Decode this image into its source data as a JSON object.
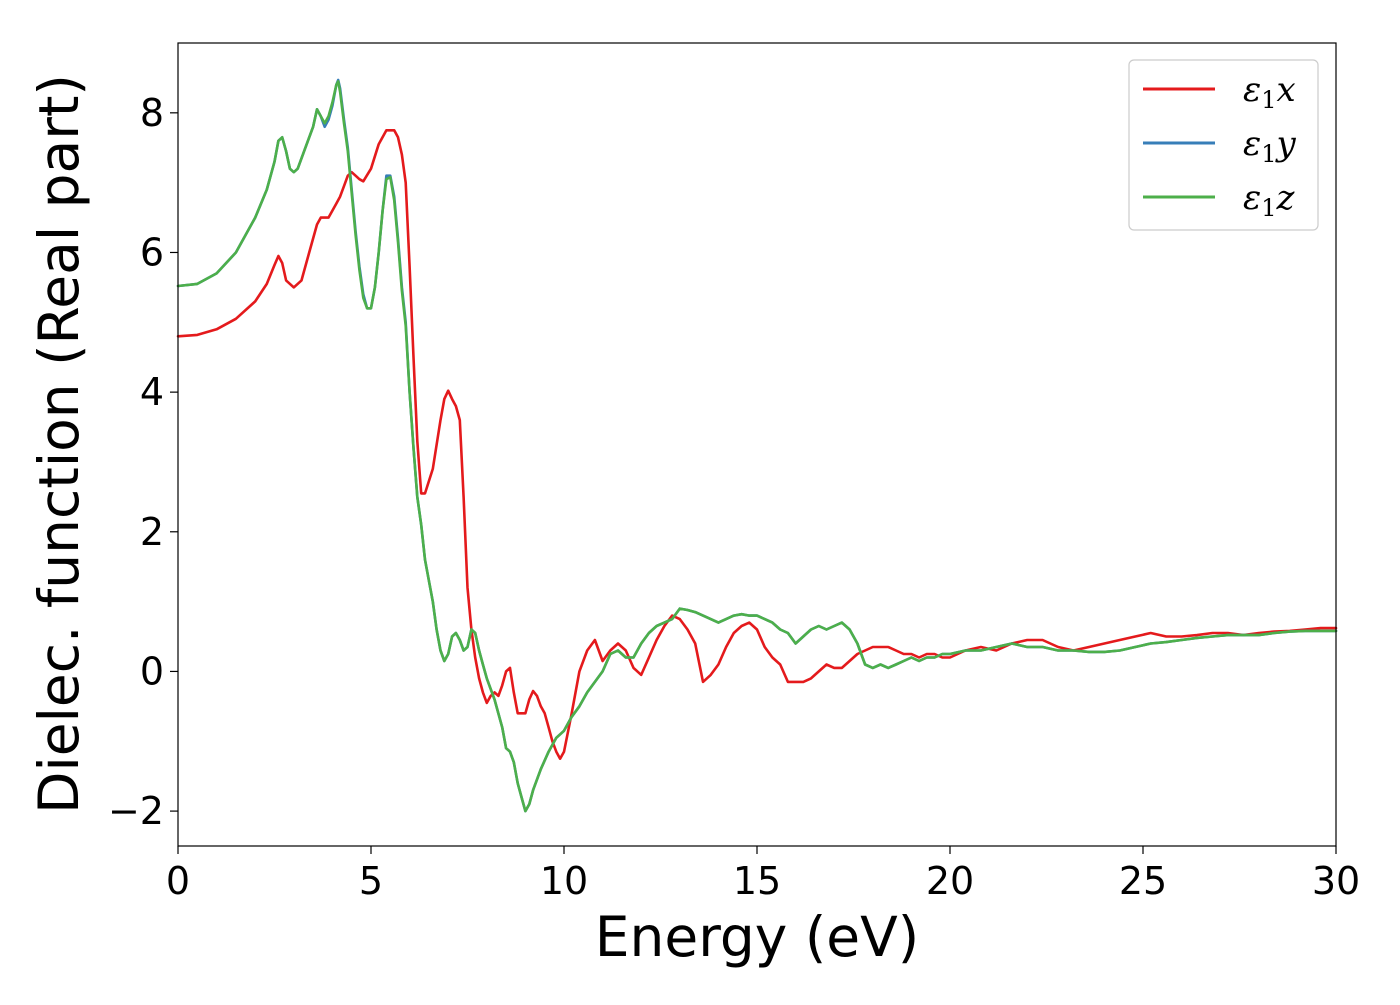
{
  "chart_data": {
    "type": "line",
    "title": "",
    "xlabel": "Energy (eV)",
    "ylabel": "Dielec. function (Real part)",
    "xlim": [
      0,
      30
    ],
    "ylim": [
      -2.5,
      9.0
    ],
    "xticks": [
      0,
      5,
      10,
      15,
      20,
      25,
      30
    ],
    "yticks": [
      -2,
      0,
      2,
      4,
      6,
      8
    ],
    "xtick_labels": [
      "0",
      "5",
      "10",
      "15",
      "20",
      "25",
      "30"
    ],
    "ytick_labels": [
      "−2",
      "0",
      "2",
      "4",
      "6",
      "8"
    ],
    "grid": false,
    "legend_position": "top-right",
    "series": [
      {
        "name": "ε1x",
        "label_main": "ε",
        "label_sub": "1",
        "label_tail": "x",
        "color": "#e41a1c",
        "x": [
          0,
          0.5,
          1.0,
          1.5,
          2.0,
          2.3,
          2.5,
          2.6,
          2.7,
          2.8,
          3.0,
          3.2,
          3.4,
          3.6,
          3.7,
          3.8,
          3.9,
          4.0,
          4.1,
          4.2,
          4.3,
          4.4,
          4.5,
          4.6,
          4.7,
          4.8,
          5.0,
          5.2,
          5.4,
          5.6,
          5.7,
          5.8,
          5.9,
          6.0,
          6.1,
          6.2,
          6.3,
          6.4,
          6.6,
          6.8,
          6.9,
          7.0,
          7.1,
          7.2,
          7.3,
          7.4,
          7.5,
          7.6,
          7.7,
          7.8,
          7.9,
          8.0,
          8.1,
          8.2,
          8.3,
          8.4,
          8.5,
          8.6,
          8.7,
          8.8,
          9.0,
          9.1,
          9.2,
          9.3,
          9.4,
          9.5,
          9.6,
          9.7,
          9.8,
          9.9,
          10.0,
          10.2,
          10.4,
          10.6,
          10.8,
          11.0,
          11.2,
          11.4,
          11.6,
          11.8,
          12.0,
          12.2,
          12.4,
          12.6,
          12.8,
          13.0,
          13.2,
          13.4,
          13.6,
          13.8,
          14.0,
          14.2,
          14.4,
          14.6,
          14.8,
          15.0,
          15.2,
          15.4,
          15.6,
          15.8,
          16.0,
          16.2,
          16.4,
          16.6,
          16.8,
          17.0,
          17.2,
          17.4,
          17.6,
          17.8,
          18.0,
          18.2,
          18.4,
          18.6,
          18.8,
          19.0,
          19.2,
          19.4,
          19.6,
          19.8,
          20.0,
          20.4,
          20.8,
          21.2,
          21.6,
          22.0,
          22.4,
          22.8,
          23.2,
          23.6,
          24.0,
          24.4,
          24.8,
          25.2,
          25.6,
          26.0,
          26.4,
          26.8,
          27.2,
          27.6,
          28.0,
          28.4,
          28.8,
          29.2,
          29.6,
          30.0
        ],
        "y": [
          4.8,
          4.82,
          4.9,
          5.05,
          5.3,
          5.55,
          5.82,
          5.95,
          5.85,
          5.6,
          5.5,
          5.6,
          6.0,
          6.4,
          6.5,
          6.5,
          6.5,
          6.6,
          6.7,
          6.8,
          6.95,
          7.1,
          7.15,
          7.1,
          7.05,
          7.02,
          7.2,
          7.55,
          7.75,
          7.75,
          7.65,
          7.4,
          7.0,
          5.8,
          4.5,
          3.3,
          2.55,
          2.55,
          2.9,
          3.6,
          3.9,
          4.02,
          3.9,
          3.8,
          3.6,
          2.5,
          1.2,
          0.6,
          0.2,
          -0.1,
          -0.3,
          -0.45,
          -0.35,
          -0.3,
          -0.35,
          -0.2,
          0.0,
          0.05,
          -0.3,
          -0.6,
          -0.6,
          -0.4,
          -0.28,
          -0.35,
          -0.5,
          -0.6,
          -0.8,
          -1.0,
          -1.15,
          -1.25,
          -1.15,
          -0.6,
          0.0,
          0.3,
          0.45,
          0.15,
          0.3,
          0.4,
          0.3,
          0.05,
          -0.05,
          0.2,
          0.45,
          0.65,
          0.8,
          0.75,
          0.6,
          0.4,
          -0.15,
          -0.05,
          0.1,
          0.35,
          0.55,
          0.65,
          0.7,
          0.6,
          0.35,
          0.2,
          0.1,
          -0.15,
          -0.15,
          -0.15,
          -0.1,
          0.0,
          0.1,
          0.05,
          0.05,
          0.15,
          0.25,
          0.3,
          0.35,
          0.35,
          0.35,
          0.3,
          0.25,
          0.25,
          0.2,
          0.25,
          0.25,
          0.2,
          0.2,
          0.3,
          0.35,
          0.3,
          0.4,
          0.45,
          0.45,
          0.35,
          0.3,
          0.35,
          0.4,
          0.45,
          0.5,
          0.55,
          0.5,
          0.5,
          0.52,
          0.55,
          0.55,
          0.52,
          0.55,
          0.57,
          0.58,
          0.6,
          0.62,
          0.62
        ]
      },
      {
        "name": "ε1y",
        "label_main": "ε",
        "label_sub": "1",
        "label_tail": "y",
        "color": "#377eb8",
        "x": [
          0,
          0.5,
          1.0,
          1.5,
          2.0,
          2.3,
          2.5,
          2.6,
          2.7,
          2.8,
          2.9,
          3.0,
          3.1,
          3.3,
          3.5,
          3.6,
          3.7,
          3.8,
          3.9,
          4.0,
          4.1,
          4.15,
          4.2,
          4.3,
          4.4,
          4.5,
          4.6,
          4.7,
          4.8,
          4.9,
          5.0,
          5.1,
          5.2,
          5.3,
          5.4,
          5.5,
          5.6,
          5.7,
          5.8,
          5.9,
          6.0,
          6.1,
          6.2,
          6.3,
          6.4,
          6.5,
          6.6,
          6.7,
          6.8,
          6.9,
          7.0,
          7.1,
          7.2,
          7.3,
          7.4,
          7.5,
          7.6,
          7.7,
          7.8,
          7.9,
          8.0,
          8.2,
          8.4,
          8.5,
          8.6,
          8.7,
          8.8,
          8.9,
          9.0,
          9.1,
          9.2,
          9.4,
          9.6,
          9.8,
          10.0,
          10.2,
          10.4,
          10.6,
          10.8,
          11.0,
          11.2,
          11.4,
          11.6,
          11.8,
          12.0,
          12.2,
          12.4,
          12.6,
          12.8,
          13.0,
          13.2,
          13.4,
          13.6,
          13.8,
          14.0,
          14.2,
          14.4,
          14.6,
          14.8,
          15.0,
          15.2,
          15.4,
          15.6,
          15.8,
          16.0,
          16.2,
          16.4,
          16.6,
          16.8,
          17.0,
          17.2,
          17.4,
          17.6,
          17.8,
          18.0,
          18.2,
          18.4,
          18.6,
          18.8,
          19.0,
          19.2,
          19.4,
          19.6,
          19.8,
          20.0,
          20.4,
          20.8,
          21.2,
          21.6,
          22.0,
          22.4,
          22.8,
          23.2,
          23.6,
          24.0,
          24.4,
          24.8,
          25.2,
          25.6,
          26.0,
          26.4,
          26.8,
          27.2,
          27.6,
          28.0,
          28.4,
          28.8,
          29.2,
          29.6,
          30.0
        ],
        "y": [
          5.52,
          5.55,
          5.7,
          6.0,
          6.5,
          6.9,
          7.3,
          7.6,
          7.65,
          7.45,
          7.2,
          7.15,
          7.2,
          7.5,
          7.8,
          8.05,
          7.95,
          7.8,
          7.9,
          8.1,
          8.4,
          8.47,
          8.35,
          7.9,
          7.5,
          6.9,
          6.3,
          5.8,
          5.4,
          5.2,
          5.2,
          5.5,
          6.0,
          6.6,
          7.1,
          7.1,
          6.8,
          6.2,
          5.5,
          5.0,
          4.0,
          3.2,
          2.5,
          2.1,
          1.6,
          1.3,
          1.0,
          0.6,
          0.3,
          0.15,
          0.25,
          0.5,
          0.55,
          0.45,
          0.3,
          0.35,
          0.6,
          0.55,
          0.3,
          0.1,
          -0.1,
          -0.4,
          -0.8,
          -1.1,
          -1.15,
          -1.3,
          -1.6,
          -1.8,
          -2.0,
          -1.9,
          -1.7,
          -1.4,
          -1.15,
          -0.95,
          -0.85,
          -0.65,
          -0.5,
          -0.3,
          -0.15,
          0.0,
          0.25,
          0.3,
          0.2,
          0.2,
          0.4,
          0.55,
          0.65,
          0.7,
          0.75,
          0.9,
          0.88,
          0.85,
          0.8,
          0.75,
          0.7,
          0.75,
          0.8,
          0.82,
          0.8,
          0.8,
          0.75,
          0.7,
          0.6,
          0.55,
          0.4,
          0.5,
          0.6,
          0.65,
          0.6,
          0.65,
          0.7,
          0.6,
          0.4,
          0.1,
          0.05,
          0.1,
          0.05,
          0.1,
          0.15,
          0.2,
          0.15,
          0.2,
          0.2,
          0.25,
          0.25,
          0.3,
          0.3,
          0.35,
          0.4,
          0.35,
          0.35,
          0.3,
          0.3,
          0.28,
          0.28,
          0.3,
          0.35,
          0.4,
          0.42,
          0.45,
          0.48,
          0.5,
          0.52,
          0.52,
          0.52,
          0.55,
          0.57,
          0.58,
          0.58,
          0.58
        ]
      },
      {
        "name": "ε1z",
        "label_main": "ε",
        "label_sub": "1",
        "label_tail": "z",
        "color": "#4daf4a",
        "x": [
          0,
          0.5,
          1.0,
          1.5,
          2.0,
          2.3,
          2.5,
          2.6,
          2.7,
          2.8,
          2.9,
          3.0,
          3.1,
          3.3,
          3.5,
          3.6,
          3.7,
          3.8,
          3.9,
          4.0,
          4.1,
          4.15,
          4.2,
          4.3,
          4.4,
          4.5,
          4.6,
          4.7,
          4.8,
          4.9,
          5.0,
          5.1,
          5.2,
          5.3,
          5.4,
          5.5,
          5.6,
          5.7,
          5.8,
          5.9,
          6.0,
          6.1,
          6.2,
          6.3,
          6.4,
          6.5,
          6.6,
          6.7,
          6.8,
          6.9,
          7.0,
          7.1,
          7.2,
          7.3,
          7.4,
          7.5,
          7.6,
          7.7,
          7.8,
          7.9,
          8.0,
          8.2,
          8.4,
          8.5,
          8.6,
          8.7,
          8.8,
          8.9,
          9.0,
          9.1,
          9.2,
          9.4,
          9.6,
          9.8,
          10.0,
          10.2,
          10.4,
          10.6,
          10.8,
          11.0,
          11.2,
          11.4,
          11.6,
          11.8,
          12.0,
          12.2,
          12.4,
          12.6,
          12.8,
          13.0,
          13.2,
          13.4,
          13.6,
          13.8,
          14.0,
          14.2,
          14.4,
          14.6,
          14.8,
          15.0,
          15.2,
          15.4,
          15.6,
          15.8,
          16.0,
          16.2,
          16.4,
          16.6,
          16.8,
          17.0,
          17.2,
          17.4,
          17.6,
          17.8,
          18.0,
          18.2,
          18.4,
          18.6,
          18.8,
          19.0,
          19.2,
          19.4,
          19.6,
          19.8,
          20.0,
          20.4,
          20.8,
          21.2,
          21.6,
          22.0,
          22.4,
          22.8,
          23.2,
          23.6,
          24.0,
          24.4,
          24.8,
          25.2,
          25.6,
          26.0,
          26.4,
          26.8,
          27.2,
          27.6,
          28.0,
          28.4,
          28.8,
          29.2,
          29.6,
          30.0
        ],
        "y": [
          5.52,
          5.55,
          5.7,
          6.0,
          6.5,
          6.9,
          7.3,
          7.6,
          7.65,
          7.45,
          7.2,
          7.15,
          7.2,
          7.5,
          7.8,
          8.05,
          7.95,
          7.85,
          7.95,
          8.15,
          8.4,
          8.45,
          8.3,
          7.85,
          7.45,
          6.85,
          6.25,
          5.75,
          5.35,
          5.2,
          5.2,
          5.5,
          6.0,
          6.6,
          7.05,
          7.08,
          6.75,
          6.15,
          5.45,
          4.95,
          4.0,
          3.2,
          2.5,
          2.1,
          1.6,
          1.3,
          1.0,
          0.6,
          0.3,
          0.15,
          0.25,
          0.5,
          0.55,
          0.45,
          0.3,
          0.35,
          0.6,
          0.55,
          0.3,
          0.1,
          -0.1,
          -0.4,
          -0.8,
          -1.1,
          -1.15,
          -1.3,
          -1.6,
          -1.8,
          -2.0,
          -1.9,
          -1.7,
          -1.4,
          -1.15,
          -0.95,
          -0.85,
          -0.65,
          -0.5,
          -0.3,
          -0.15,
          0.0,
          0.25,
          0.3,
          0.2,
          0.2,
          0.4,
          0.55,
          0.65,
          0.7,
          0.75,
          0.9,
          0.88,
          0.85,
          0.8,
          0.75,
          0.7,
          0.75,
          0.8,
          0.82,
          0.8,
          0.8,
          0.75,
          0.7,
          0.6,
          0.55,
          0.4,
          0.5,
          0.6,
          0.65,
          0.6,
          0.65,
          0.7,
          0.6,
          0.4,
          0.1,
          0.05,
          0.1,
          0.05,
          0.1,
          0.15,
          0.2,
          0.15,
          0.2,
          0.2,
          0.25,
          0.25,
          0.3,
          0.3,
          0.35,
          0.4,
          0.35,
          0.35,
          0.3,
          0.3,
          0.28,
          0.28,
          0.3,
          0.35,
          0.4,
          0.42,
          0.45,
          0.48,
          0.5,
          0.52,
          0.52,
          0.52,
          0.55,
          0.57,
          0.58,
          0.58,
          0.58
        ]
      }
    ]
  }
}
